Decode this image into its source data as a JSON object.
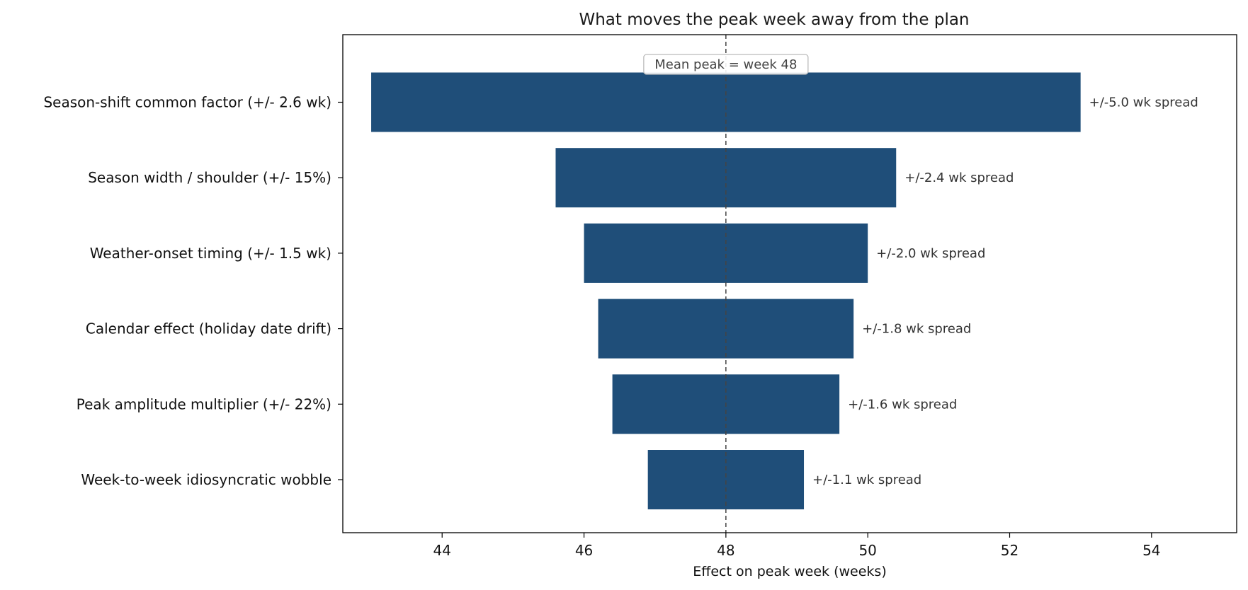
{
  "chart_data": {
    "type": "bar",
    "orientation": "horizontal",
    "variant": "tornado",
    "title": "What moves the peak week away from the plan",
    "xlabel": "Effect on peak week  (weeks)",
    "ylabel": "",
    "xlim": [
      42.6,
      55.2
    ],
    "xticks": [
      44,
      46,
      48,
      50,
      52,
      54
    ],
    "grid": false,
    "legend": "none",
    "bar_color": "#1f4e79",
    "center": 48,
    "center_label": "Mean peak = week 48",
    "categories": [
      "Season-shift common factor (+/- 2.6 wk)",
      "Season width / shoulder (+/- 15%)",
      "Weather-onset timing (+/- 1.5 wk)",
      "Calendar effect (holiday date drift)",
      "Peak amplitude multiplier (+/- 22%)",
      "Week-to-week idiosyncratic wobble"
    ],
    "low": [
      43.0,
      45.6,
      46.0,
      46.2,
      46.4,
      46.9
    ],
    "high": [
      53.0,
      50.4,
      50.0,
      49.8,
      49.6,
      49.1
    ],
    "labels": [
      "+/-5.0 wk spread",
      "+/-2.4 wk spread",
      "+/-2.0 wk spread",
      "+/-1.8 wk spread",
      "+/-1.6 wk spread",
      "+/-1.1 wk spread"
    ]
  }
}
